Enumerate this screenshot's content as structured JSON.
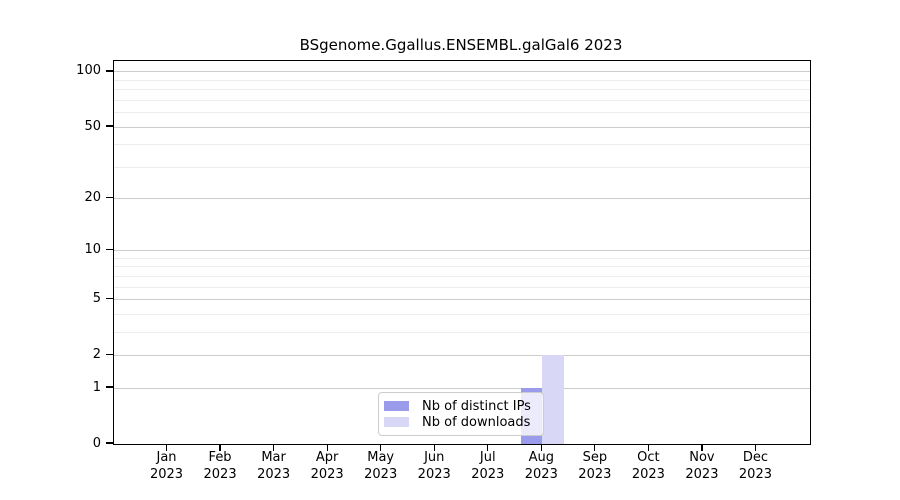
{
  "chart_data": {
    "type": "bar",
    "title": "BSgenome.Ggallus.ENSEMBL.galGal6 2023",
    "categories": [
      "Jan",
      "Feb",
      "Mar",
      "Apr",
      "May",
      "Jun",
      "Jul",
      "Aug",
      "Sep",
      "Oct",
      "Nov",
      "Dec"
    ],
    "category_year": "2023",
    "series": [
      {
        "name": "Nb of distinct IPs",
        "color": "#9b9bec",
        "values": [
          0,
          0,
          0,
          0,
          0,
          0,
          0,
          1,
          0,
          0,
          0,
          0
        ]
      },
      {
        "name": "Nb of downloads",
        "color": "#d8d8f6",
        "values": [
          0,
          0,
          0,
          0,
          0,
          0,
          0,
          2,
          0,
          0,
          0,
          0
        ]
      }
    ],
    "yscale": "log1p",
    "ylim": [
      0,
      115
    ],
    "yticks": [
      0,
      1,
      2,
      5,
      10,
      20,
      50,
      100
    ],
    "yticks_minor": [
      3,
      4,
      6,
      7,
      8,
      9,
      30,
      40,
      60,
      70,
      80,
      90
    ],
    "grid": true,
    "legend_position": "lower center",
    "colors": {
      "grid_major": "#cccccc",
      "grid_minor": "#ececec",
      "axis": "#000000",
      "background": "#ffffff"
    }
  }
}
